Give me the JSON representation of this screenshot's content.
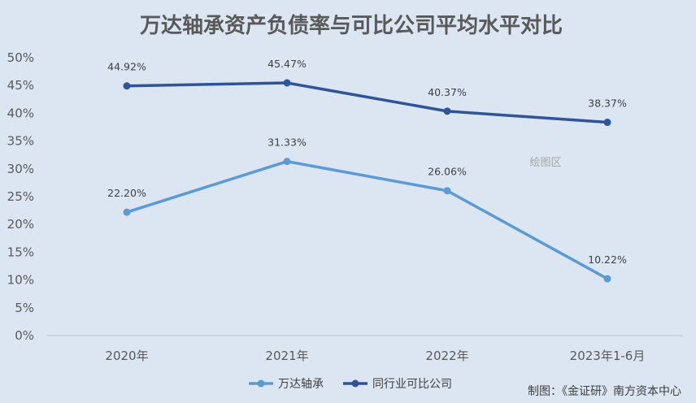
{
  "chart_data": {
    "type": "line",
    "title": "万达轴承资产负债率与可比公司平均水平对比",
    "categories": [
      "2020年",
      "2021年",
      "2022年",
      "2023年1-6月"
    ],
    "series": [
      {
        "name": "万达轴承",
        "values": [
          22.2,
          31.33,
          26.06,
          10.22
        ],
        "labels": [
          "22.20%",
          "31.33%",
          "26.06%",
          "10.22%"
        ],
        "color": "#5b9bd5"
      },
      {
        "name": "同行业可比公司",
        "values": [
          44.92,
          45.47,
          40.37,
          38.37
        ],
        "labels": [
          "44.92%",
          "45.47%",
          "40.37%",
          "38.37%"
        ],
        "color": "#2f5597"
      }
    ],
    "ylim": [
      0,
      50
    ],
    "yticks": [
      "0%",
      "5%",
      "10%",
      "15%",
      "20%",
      "25%",
      "30%",
      "35%",
      "40%",
      "45%",
      "50%"
    ],
    "grid": false,
    "legend_position": "bottom"
  },
  "watermark": "绘图区",
  "credit": "制图：《金证研》南方资本中心"
}
